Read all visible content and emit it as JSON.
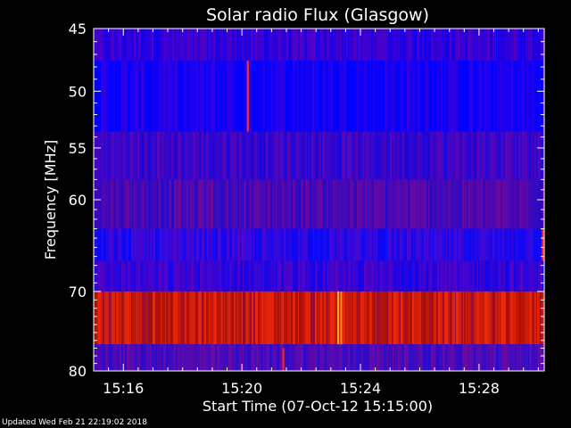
{
  "chart_data": {
    "type": "heatmap",
    "title": "Solar radio Flux (Glasgow)",
    "xlabel": "Start Time (07-Oct-12 15:15:00)",
    "ylabel": "Frequency [MHz]",
    "x_start_minutes": 0,
    "x_end_minutes": 15.2,
    "xlim_minutes": [
      0,
      15.2
    ],
    "x_ticks": [
      {
        "minute": 1,
        "label": "15:16"
      },
      {
        "minute": 5,
        "label": "15:20"
      },
      {
        "minute": 9,
        "label": "15:24"
      },
      {
        "minute": 13,
        "label": "15:28"
      }
    ],
    "ylim": [
      45,
      80
    ],
    "y_ticks": [
      45,
      50,
      55,
      60,
      70,
      80
    ],
    "y_scale": "log",
    "frequency_bands": [
      {
        "low": 45,
        "high": 47.5,
        "base_color": "#3200d8"
      },
      {
        "low": 47.5,
        "high": 53.5,
        "base_color": "#1400f4"
      },
      {
        "low": 53.5,
        "high": 58,
        "base_color": "#3a06c8"
      },
      {
        "low": 58,
        "high": 63,
        "base_color": "#4a08b2"
      },
      {
        "low": 63,
        "high": 66.5,
        "base_color": "#2808e4"
      },
      {
        "low": 66.5,
        "high": 70,
        "base_color": "#3404d6"
      },
      {
        "low": 70,
        "high": 76.5,
        "base_color": "#c80a0a"
      },
      {
        "low": 76.5,
        "high": 80,
        "base_color": "#4a0ab8"
      }
    ],
    "bright_events": [
      {
        "minute": 5.2,
        "low": 47.5,
        "high": 53.5,
        "color": "#ff3a10"
      },
      {
        "minute": 8.25,
        "low": 70,
        "high": 76.5,
        "color": "#ffb030"
      },
      {
        "minute": 8.35,
        "low": 70,
        "high": 76.5,
        "color": "#ff9020"
      },
      {
        "minute": 6.4,
        "low": 77,
        "high": 80,
        "color": "#ff2a10"
      },
      {
        "minute": 15.15,
        "low": 63,
        "high": 66.5,
        "color": "#ff2a10"
      }
    ],
    "grid": false
  },
  "footer": "Updated Wed Feb 21 22:19:02 2018"
}
